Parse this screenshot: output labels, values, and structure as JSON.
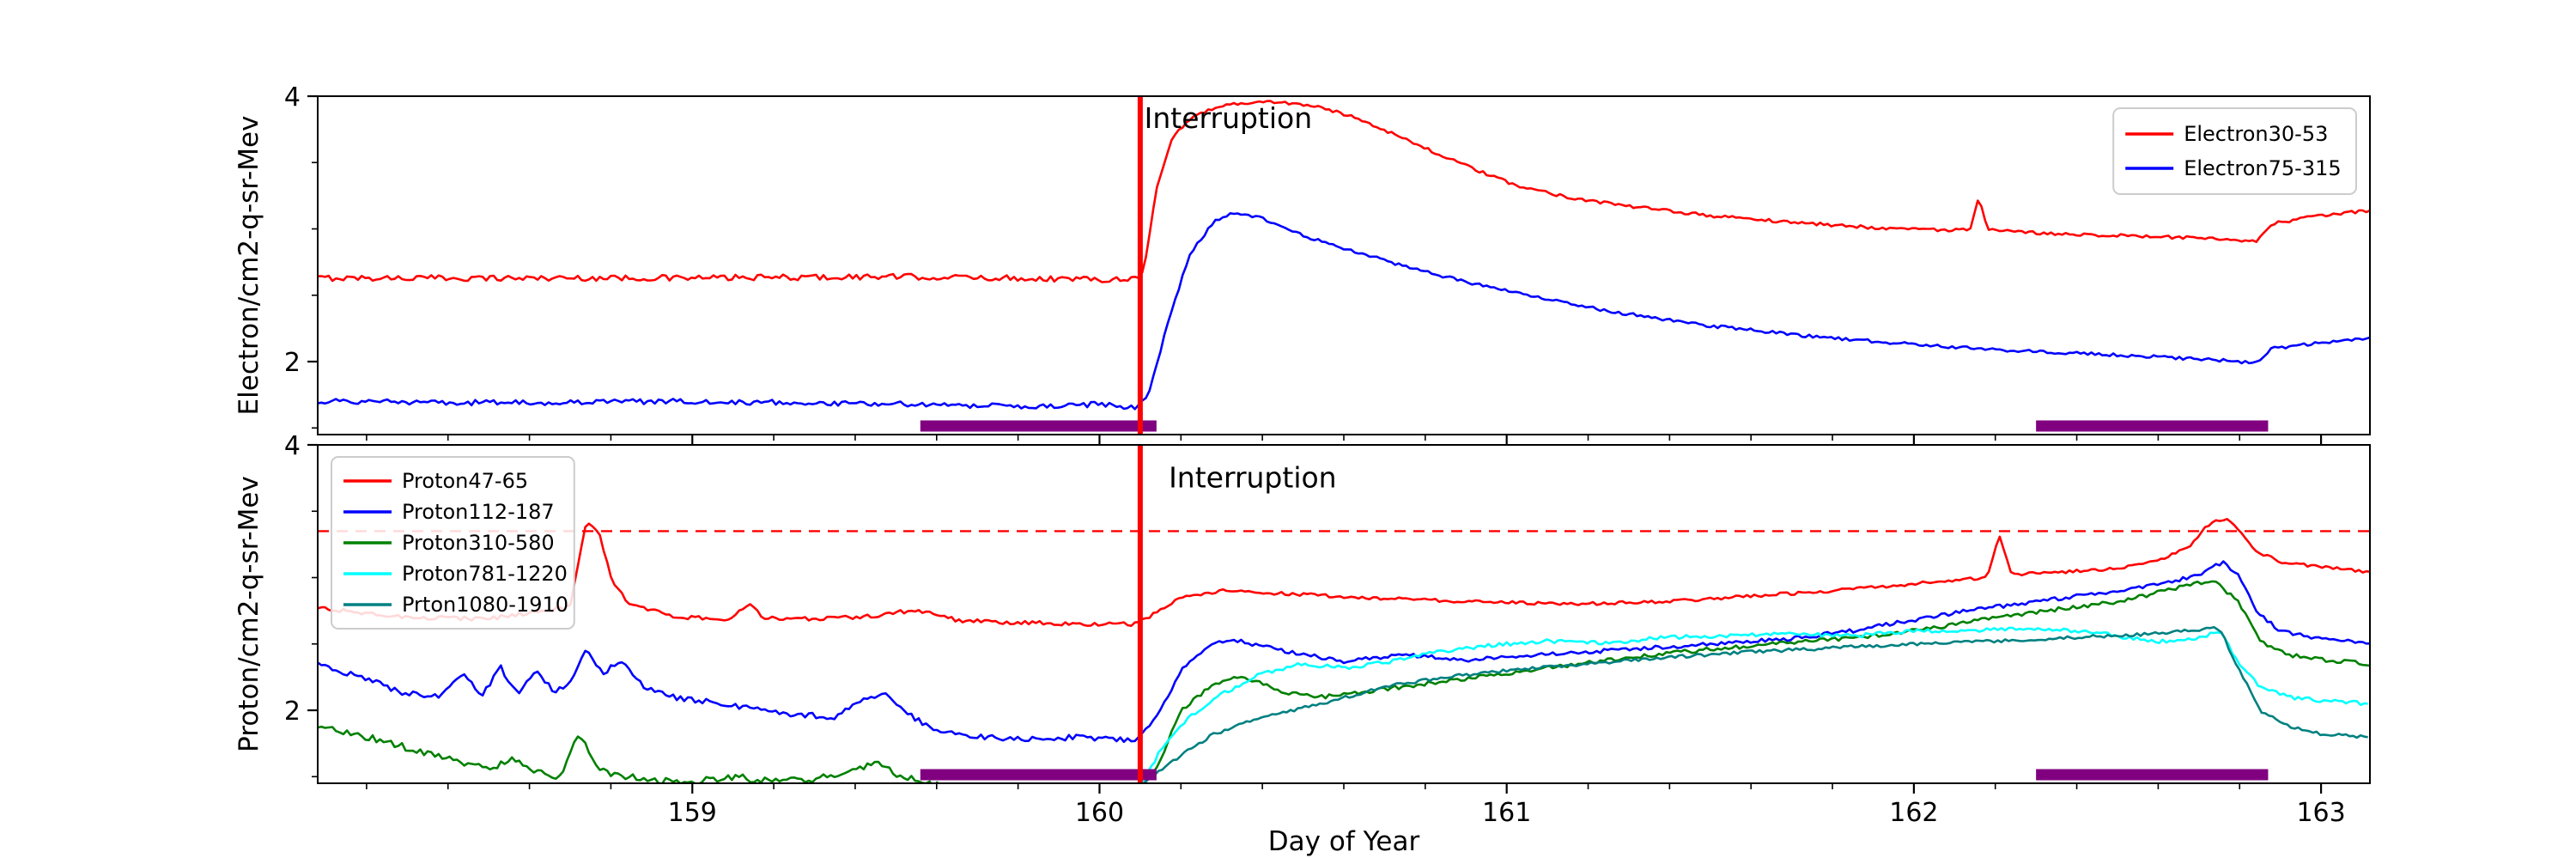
{
  "chart_data": {
    "type": "line",
    "xlabel": "Day of Year",
    "xlim": [
      158.08,
      163.12
    ],
    "x_major_ticks": [
      159,
      160,
      161,
      162,
      163
    ],
    "x_minor_step": 0.2,
    "panels": [
      {
        "name": "electron-flux",
        "ylabel": "Electron/cm2-q-sr-Mev",
        "ylim": [
          1.45,
          4.0
        ],
        "y_major_ticks": [
          2,
          4
        ],
        "y_minor_ticks": [
          1.5,
          2.5,
          3.0,
          3.5
        ],
        "legend": {
          "position": "top-right"
        },
        "annotation": {
          "text": "Interruption",
          "x": 160.11,
          "y": 3.76,
          "color": "#ff0000"
        },
        "interruption_line": {
          "x": 160.1,
          "color": "#ff0000",
          "width": 6
        },
        "highlight_bands": [
          [
            159.56,
            160.14
          ],
          [
            162.3,
            162.87
          ]
        ],
        "band_color": "#800080",
        "series": [
          {
            "name": "Electron30-53",
            "color": "#ff0000",
            "noise_split": 160.1,
            "noise_pre": 0.022,
            "noise_post": 0.012,
            "x": [
              158.08,
              159.0,
              159.5,
              160.0,
              160.09,
              160.11,
              160.14,
              160.18,
              160.24,
              160.32,
              160.42,
              160.52,
              160.62,
              160.72,
              160.82,
              160.92,
              161.02,
              161.15,
              161.3,
              161.5,
              161.7,
              161.9,
              162.1,
              162.14,
              162.16,
              162.18,
              162.3,
              162.5,
              162.7,
              162.8,
              162.84,
              162.88,
              163.0,
              163.12
            ],
            "y": [
              2.63,
              2.63,
              2.64,
              2.62,
              2.63,
              2.7,
              3.3,
              3.7,
              3.87,
              3.94,
              3.96,
              3.93,
              3.85,
              3.72,
              3.58,
              3.45,
              3.33,
              3.24,
              3.17,
              3.1,
              3.05,
              3.01,
              2.99,
              3.0,
              3.25,
              2.99,
              2.97,
              2.95,
              2.93,
              2.91,
              2.9,
              3.04,
              3.1,
              3.14
            ]
          },
          {
            "name": "Electron75-315",
            "color": "#0000ff",
            "noise_split": 160.1,
            "noise_pre": 0.02,
            "noise_post": 0.012,
            "x": [
              158.08,
              158.5,
              159.0,
              159.5,
              159.9,
              160.0,
              160.09,
              160.12,
              160.16,
              160.22,
              160.28,
              160.33,
              160.4,
              160.5,
              160.6,
              160.75,
              160.9,
              161.05,
              161.25,
              161.5,
              161.75,
              162.0,
              162.25,
              162.5,
              162.7,
              162.8,
              162.84,
              162.88,
              163.0,
              163.12
            ],
            "y": [
              1.7,
              1.69,
              1.7,
              1.68,
              1.66,
              1.68,
              1.65,
              1.75,
              2.2,
              2.8,
              3.05,
              3.12,
              3.08,
              2.95,
              2.85,
              2.72,
              2.6,
              2.5,
              2.38,
              2.27,
              2.19,
              2.13,
              2.08,
              2.05,
              2.02,
              2.0,
              1.99,
              2.1,
              2.14,
              2.18
            ]
          }
        ]
      },
      {
        "name": "proton-flux",
        "ylabel": "Proton/cm2-q-sr-Mev",
        "ylim": [
          1.45,
          4.0
        ],
        "y_major_ticks": [
          2,
          4
        ],
        "y_minor_ticks": [
          1.5,
          2.5,
          3.0,
          3.5
        ],
        "legend": {
          "position": "top-left"
        },
        "annotation": {
          "text": "Interruption",
          "x": 160.17,
          "y": 3.68,
          "color": "#ff0000"
        },
        "interruption_line": {
          "x": 160.1,
          "color": "#ff0000",
          "width": 6
        },
        "dashed_threshold_line": {
          "y": 3.35,
          "color": "#ff0000"
        },
        "highlight_bands": [
          [
            159.56,
            160.14
          ],
          [
            162.3,
            162.87
          ]
        ],
        "band_color": "#800080",
        "series": [
          {
            "name": "Proton47-65",
            "color": "#ff0000",
            "noise_split": 160.1,
            "noise_pre": 0.015,
            "noise_post": 0.012,
            "x": [
              158.08,
              158.3,
              158.5,
              158.62,
              158.7,
              158.74,
              158.77,
              158.8,
              158.84,
              158.95,
              159.1,
              159.14,
              159.17,
              159.3,
              159.45,
              159.55,
              159.65,
              159.8,
              160.0,
              160.09,
              160.13,
              160.2,
              160.3,
              160.45,
              160.65,
              160.9,
              161.15,
              161.4,
              161.6,
              161.8,
              161.95,
              162.1,
              162.18,
              162.21,
              162.24,
              162.35,
              162.5,
              162.6,
              162.68,
              162.73,
              162.77,
              162.8,
              162.84,
              162.9,
              163.0,
              163.12
            ],
            "y": [
              2.77,
              2.7,
              2.69,
              2.74,
              2.78,
              3.42,
              3.35,
              3.0,
              2.82,
              2.7,
              2.69,
              2.82,
              2.7,
              2.69,
              2.71,
              2.76,
              2.68,
              2.66,
              2.65,
              2.65,
              2.72,
              2.85,
              2.9,
              2.88,
              2.85,
              2.82,
              2.8,
              2.82,
              2.86,
              2.9,
              2.94,
              2.98,
              3.0,
              3.32,
              3.02,
              3.04,
              3.07,
              3.12,
              3.25,
              3.42,
              3.45,
              3.35,
              3.2,
              3.12,
              3.08,
              3.04
            ]
          },
          {
            "name": "Proton112-187",
            "color": "#0000ff",
            "noise_split": 160.1,
            "noise_pre": 0.02,
            "noise_post": 0.015,
            "x": [
              158.08,
              158.18,
              158.28,
              158.38,
              158.44,
              158.48,
              158.53,
              158.57,
              158.62,
              158.66,
              158.7,
              158.74,
              158.78,
              158.83,
              158.88,
              158.95,
              159.05,
              159.15,
              159.25,
              159.35,
              159.42,
              159.47,
              159.52,
              159.58,
              159.65,
              159.75,
              159.85,
              159.95,
              160.05,
              160.09,
              160.14,
              160.2,
              160.27,
              160.33,
              160.45,
              160.6,
              160.75,
              160.9,
              161.1,
              161.3,
              161.5,
              161.7,
              161.85,
              162.0,
              162.15,
              162.3,
              162.45,
              162.6,
              162.7,
              162.76,
              162.8,
              162.84,
              162.9,
              163.0,
              163.12
            ],
            "y": [
              2.34,
              2.26,
              2.14,
              2.1,
              2.28,
              2.1,
              2.32,
              2.12,
              2.3,
              2.13,
              2.2,
              2.46,
              2.28,
              2.38,
              2.18,
              2.1,
              2.06,
              2.01,
              1.97,
              1.95,
              2.08,
              2.12,
              2.0,
              1.87,
              1.82,
              1.79,
              1.78,
              1.8,
              1.78,
              1.76,
              1.95,
              2.3,
              2.5,
              2.53,
              2.45,
              2.37,
              2.42,
              2.38,
              2.42,
              2.46,
              2.5,
              2.54,
              2.6,
              2.68,
              2.76,
              2.82,
              2.88,
              2.95,
              3.02,
              3.12,
              3.0,
              2.75,
              2.6,
              2.54,
              2.5
            ]
          },
          {
            "name": "Proton310-580",
            "color": "#008000",
            "noise_split": 160.1,
            "noise_pre": 0.025,
            "noise_post": 0.015,
            "x": [
              158.08,
              158.2,
              158.32,
              158.42,
              158.5,
              158.56,
              158.62,
              158.68,
              158.72,
              158.76,
              158.8,
              158.88,
              159.0,
              159.1,
              159.2,
              159.3,
              159.4,
              159.45,
              159.5,
              159.56,
              159.65,
              159.8,
              160.0,
              160.09,
              160.14,
              160.2,
              160.28,
              160.35,
              160.45,
              160.55,
              160.7,
              160.9,
              161.1,
              161.3,
              161.5,
              161.7,
              161.9,
              162.05,
              162.2,
              162.35,
              162.5,
              162.62,
              162.7,
              162.74,
              162.8,
              162.85,
              162.92,
              163.0,
              163.12
            ],
            "y": [
              1.88,
              1.8,
              1.7,
              1.62,
              1.56,
              1.63,
              1.53,
              1.5,
              1.83,
              1.6,
              1.52,
              1.48,
              1.46,
              1.5,
              1.46,
              1.48,
              1.55,
              1.62,
              1.52,
              1.46,
              1.4,
              1.38,
              1.38,
              1.4,
              1.55,
              2.0,
              2.2,
              2.26,
              2.14,
              2.1,
              2.16,
              2.24,
              2.32,
              2.4,
              2.46,
              2.51,
              2.56,
              2.62,
              2.7,
              2.76,
              2.82,
              2.9,
              2.96,
              2.98,
              2.8,
              2.52,
              2.42,
              2.38,
              2.35
            ]
          },
          {
            "name": "Proton781-1220",
            "color": "#00ffff",
            "noise_post": 0.015,
            "x": [
              160.1,
              160.15,
              160.22,
              160.3,
              160.4,
              160.5,
              160.6,
              160.7,
              160.8,
              160.9,
              161.0,
              161.1,
              161.25,
              161.4,
              161.55,
              161.7,
              161.85,
              162.0,
              162.15,
              162.3,
              162.4,
              162.5,
              162.6,
              162.7,
              162.75,
              162.8,
              162.85,
              162.92,
              163.0,
              163.12
            ],
            "y": [
              1.42,
              1.7,
              1.95,
              2.12,
              2.28,
              2.35,
              2.32,
              2.36,
              2.42,
              2.47,
              2.5,
              2.52,
              2.51,
              2.55,
              2.56,
              2.58,
              2.56,
              2.6,
              2.6,
              2.62,
              2.6,
              2.56,
              2.52,
              2.54,
              2.6,
              2.35,
              2.18,
              2.1,
              2.07,
              2.05
            ]
          },
          {
            "name": "Prton1080-1910",
            "color": "#008080",
            "noise_post": 0.012,
            "x": [
              160.1,
              160.18,
              160.28,
              160.4,
              160.55,
              160.7,
              160.85,
              161.0,
              161.2,
              161.4,
              161.6,
              161.8,
              162.0,
              162.2,
              162.4,
              162.55,
              162.68,
              162.75,
              162.8,
              162.85,
              162.92,
              163.0,
              163.12
            ],
            "y": [
              1.42,
              1.62,
              1.82,
              1.95,
              2.05,
              2.18,
              2.25,
              2.3,
              2.35,
              2.4,
              2.44,
              2.47,
              2.5,
              2.52,
              2.55,
              2.57,
              2.6,
              2.62,
              2.3,
              2.0,
              1.88,
              1.82,
              1.8
            ]
          }
        ]
      }
    ]
  }
}
